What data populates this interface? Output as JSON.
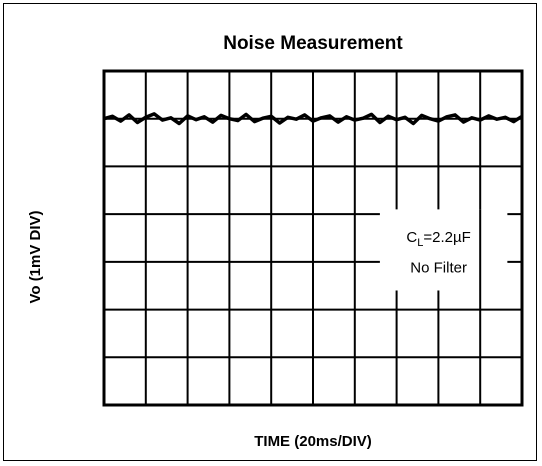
{
  "chart_data": {
    "type": "line",
    "title": "Noise Measurement",
    "xlabel": "TIME (20ms/DIV)",
    "ylabel": "Vo (1mV DIV)",
    "x_divisions": 10,
    "y_divisions": 7,
    "xlim": [
      0,
      200
    ],
    "ylim": [
      0,
      7
    ],
    "grid": true,
    "annotation": {
      "line1_main": "C",
      "line1_sub": "L",
      "line1_rest": "=2.2µF",
      "line2": "No Filter"
    },
    "series": [
      {
        "x": [
          0,
          4,
          8,
          12,
          16,
          20,
          24,
          28,
          32,
          36,
          40,
          44,
          48,
          52,
          56,
          60,
          64,
          68,
          72,
          76,
          80,
          84,
          88,
          92,
          96,
          100,
          104,
          108,
          112,
          116,
          120,
          124,
          128,
          132,
          136,
          140,
          144,
          148,
          152,
          156,
          160,
          164,
          168,
          172,
          176,
          180,
          184,
          188,
          192,
          196,
          200
        ],
        "values": [
          6.0,
          6.05,
          5.95,
          6.08,
          5.92,
          6.03,
          6.1,
          5.97,
          6.02,
          5.9,
          6.06,
          5.98,
          6.04,
          5.93,
          6.07,
          6.0,
          5.96,
          6.09,
          5.94,
          6.01,
          6.05,
          5.91,
          6.03,
          5.99,
          6.08,
          5.95,
          6.02,
          6.06,
          5.93,
          6.04,
          5.97,
          6.01,
          6.09,
          5.92,
          6.05,
          5.98,
          6.03,
          5.9,
          6.07,
          6.0,
          5.95,
          6.04,
          6.08,
          5.93,
          6.02,
          5.97,
          6.06,
          5.99,
          6.03,
          5.94,
          6.05
        ]
      }
    ]
  },
  "colors": {
    "trace": "#000000",
    "grid": "#000000",
    "background": "#ffffff"
  }
}
